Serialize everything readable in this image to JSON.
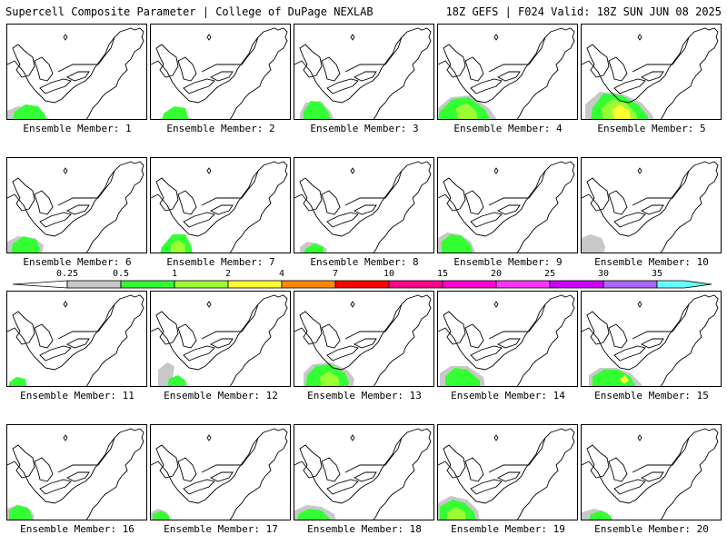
{
  "header": {
    "left_title": "Supercell Composite Parameter | College of DuPage NEXLAB",
    "right_title": "18Z GEFS | F024 Valid: 18Z SUN JUN 08 2025"
  },
  "colorbar": {
    "levels": [
      "0.25",
      "0.5",
      "1",
      "2",
      "4",
      "7",
      "10",
      "15",
      "20",
      "25",
      "30",
      "35"
    ],
    "colors": [
      "#c8c8c8",
      "#33ff33",
      "#99ff33",
      "#ffff33",
      "#ff8800",
      "#ff0000",
      "#ff0088",
      "#ff00cc",
      "#ff33ff",
      "#cc00ff",
      "#aa66ff",
      "#66ffff"
    ]
  },
  "panels": [
    {
      "label": "Ensemble Member: 1"
    },
    {
      "label": "Ensemble Member: 2"
    },
    {
      "label": "Ensemble Member: 3"
    },
    {
      "label": "Ensemble Member: 4"
    },
    {
      "label": "Ensemble Member: 5"
    },
    {
      "label": "Ensemble Member: 6"
    },
    {
      "label": "Ensemble Member: 7"
    },
    {
      "label": "Ensemble Member: 8"
    },
    {
      "label": "Ensemble Member: 9"
    },
    {
      "label": "Ensemble Member: 10"
    },
    {
      "label": "Ensemble Member: 11"
    },
    {
      "label": "Ensemble Member: 12"
    },
    {
      "label": "Ensemble Member: 13"
    },
    {
      "label": "Ensemble Member: 14"
    },
    {
      "label": "Ensemble Member: 15"
    },
    {
      "label": "Ensemble Member: 16"
    },
    {
      "label": "Ensemble Member: 17"
    },
    {
      "label": "Ensemble Member: 18"
    },
    {
      "label": "Ensemble Member: 19"
    },
    {
      "label": "Ensemble Member: 20"
    }
  ]
}
